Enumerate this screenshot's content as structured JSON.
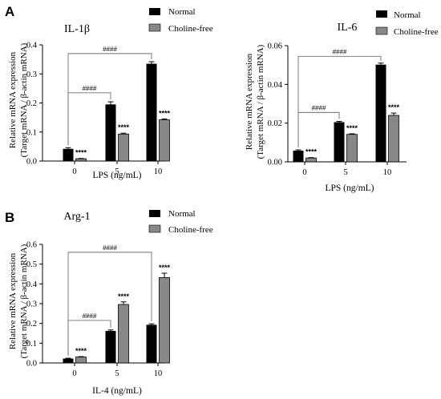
{
  "colors": {
    "normal": "#000000",
    "choline_free": "#888888",
    "axis": "#000000",
    "bracket": "#6e6e6e"
  },
  "chart_data": [
    {
      "panel": "A",
      "type": "bar",
      "title": "IL-1β",
      "xlabel": "LPS (ng/mL)",
      "ylabel": [
        "Relative mRNA expression",
        "(Target mRNA / β-actin mRNA)"
      ],
      "categories": [
        "0",
        "5",
        "10"
      ],
      "ylim": [
        0,
        0.4
      ],
      "yticks": [
        0,
        0.1,
        0.2,
        0.3,
        0.4
      ],
      "ytick_labels": [
        "0.0",
        "0.1",
        "0.2",
        "0.3",
        "0.4"
      ],
      "series": [
        {
          "name": "Normal",
          "color": "#000000",
          "values": [
            0.042,
            0.195,
            0.335
          ],
          "errors": [
            0.004,
            0.009,
            0.007
          ]
        },
        {
          "name": "Choline-free",
          "color": "#888888",
          "values": [
            0.008,
            0.093,
            0.142
          ],
          "errors": [
            0.001,
            0.003,
            0.003
          ]
        }
      ],
      "significance": [
        {
          "label": "****",
          "category": 0
        },
        {
          "label": "****",
          "category": 1
        },
        {
          "label": "****",
          "category": 2
        }
      ],
      "brackets": [
        {
          "label": "####",
          "from": 0,
          "to": 1,
          "level": 0.235
        },
        {
          "label": "####",
          "from": 0,
          "to": 2,
          "level": 0.37
        }
      ],
      "legend": "top-right"
    },
    {
      "panel": "",
      "type": "bar",
      "title": "IL-6",
      "xlabel": "LPS (ng/mL)",
      "ylabel": [
        "Relative mRNA expression",
        "(Target mRNA / β-actin mRNA)"
      ],
      "categories": [
        "0",
        "5",
        "10"
      ],
      "ylim": [
        0,
        0.06
      ],
      "yticks": [
        0,
        0.02,
        0.04,
        0.06
      ],
      "ytick_labels": [
        "0.00",
        "0.02",
        "0.04",
        "0.06"
      ],
      "series": [
        {
          "name": "Normal",
          "color": "#000000",
          "values": [
            0.0058,
            0.0205,
            0.0502
          ],
          "errors": [
            0.0004,
            0.0004,
            0.0008
          ]
        },
        {
          "name": "Choline-free",
          "color": "#888888",
          "values": [
            0.002,
            0.0142,
            0.024
          ],
          "errors": [
            0.0002,
            0.0003,
            0.0012
          ]
        }
      ],
      "significance": [
        {
          "label": "****",
          "category": 0
        },
        {
          "label": "****",
          "category": 1
        },
        {
          "label": "****",
          "category": 2
        }
      ],
      "brackets": [
        {
          "label": "####",
          "from": 0,
          "to": 1,
          "level": 0.0255
        },
        {
          "label": "####",
          "from": 0,
          "to": 2,
          "level": 0.0545
        }
      ],
      "legend": "top-right"
    },
    {
      "panel": "B",
      "type": "bar",
      "title": "Arg-1",
      "xlabel": "IL-4 (ng/mL)",
      "ylabel": [
        "Relative mRNA expression",
        "(Target mRNA / β-actin mRNA)"
      ],
      "categories": [
        "0",
        "5",
        "10"
      ],
      "ylim": [
        0,
        0.6
      ],
      "yticks": [
        0,
        0.1,
        0.2,
        0.3,
        0.4,
        0.5,
        0.6
      ],
      "ytick_labels": [
        "0.0",
        "0.1",
        "0.2",
        "0.3",
        "0.4",
        "0.5",
        "0.6"
      ],
      "series": [
        {
          "name": "Normal",
          "color": "#000000",
          "values": [
            0.022,
            0.162,
            0.193
          ],
          "errors": [
            0.002,
            0.005,
            0.005
          ]
        },
        {
          "name": "Choline-free",
          "color": "#888888",
          "values": [
            0.03,
            0.296,
            0.432
          ],
          "errors": [
            0.002,
            0.013,
            0.022
          ]
        }
      ],
      "significance": [
        {
          "label": "****",
          "category": 0
        },
        {
          "label": "****",
          "category": 1
        },
        {
          "label": "****",
          "category": 2
        }
      ],
      "brackets": [
        {
          "label": "####",
          "from": 0,
          "to": 1,
          "level": 0.215
        },
        {
          "label": "####",
          "from": 0,
          "to": 2,
          "level": 0.56
        }
      ],
      "legend": "top-right"
    }
  ]
}
